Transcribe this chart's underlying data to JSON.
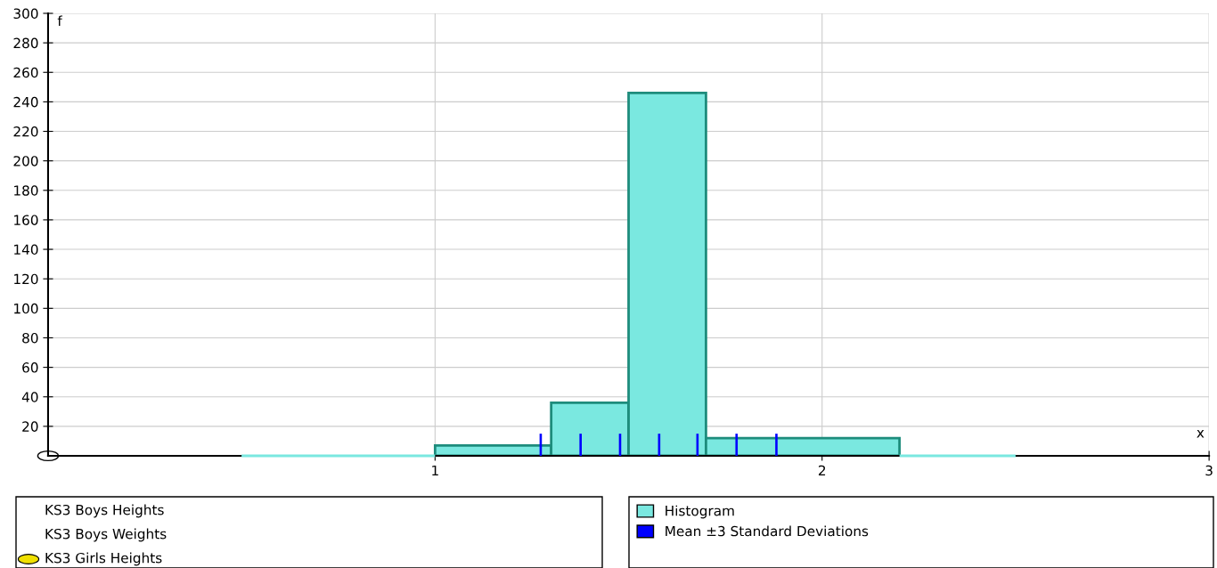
{
  "chart_data": {
    "type": "histogram",
    "xlabel": "x",
    "ylabel": "f",
    "bins": [
      0.5,
      1.0,
      1.3,
      1.5,
      1.7,
      2.2,
      2.5
    ],
    "series": [
      {
        "name": "Histogram",
        "color": "#7ae8e0",
        "values": [
          0,
          7,
          36,
          246,
          12,
          0
        ]
      },
      {
        "name": "Mean ±3 Standard Deviations",
        "type": "bar",
        "color": "#0000ff",
        "x": [
          1.273,
          1.376,
          1.478,
          1.579,
          1.678,
          1.779,
          1.882
        ],
        "values": [
          15,
          15,
          15,
          15,
          15,
          15,
          15
        ]
      }
    ],
    "xlim": [
      0,
      3
    ],
    "ylim": [
      0,
      300
    ],
    "xticks": [
      1,
      2,
      3
    ],
    "yticks": [
      20,
      40,
      60,
      80,
      100,
      120,
      140,
      160,
      180,
      200,
      220,
      240,
      260,
      280,
      300
    ],
    "annotations": [
      "KS3 Boys Heights",
      "KS3 Boys Weights",
      "KS3 Girls Heights"
    ],
    "grid": true,
    "legend": "bottom right"
  }
}
